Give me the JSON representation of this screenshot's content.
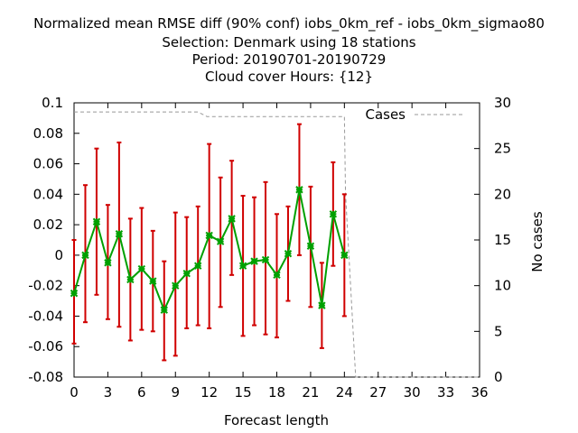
{
  "chart_data": {
    "type": "line",
    "title_lines": [
      "Normalized mean RMSE diff (90% conf) iobs_0km_ref - iobs_0km_sigmao80",
      "Selection: Denmark using    18 stations",
      "Period: 20190701-20190729",
      "Cloud cover   Hours: {12}"
    ],
    "xlabel": "Forecast length",
    "ylabel_right": "No cases",
    "xlim": [
      0,
      36
    ],
    "ylim": [
      -0.08,
      0.1
    ],
    "y2lim": [
      0,
      30
    ],
    "x_ticks": [
      "0",
      "3",
      "6",
      "9",
      "12",
      "15",
      "18",
      "21",
      "24",
      "27",
      "30",
      "33",
      "36"
    ],
    "y_ticks": [
      "0.1",
      "0.08",
      "0.06",
      "0.04",
      "0.02",
      "0",
      "-0.02",
      "-0.04",
      "-0.06",
      "-0.08"
    ],
    "y2_ticks": [
      "30",
      "25",
      "20",
      "15",
      "10",
      "5",
      "0"
    ],
    "x_tick_values": [
      0,
      3,
      6,
      9,
      12,
      15,
      18,
      21,
      24,
      27,
      30,
      33,
      36
    ],
    "y_tick_values": [
      0.1,
      0.08,
      0.06,
      0.04,
      0.02,
      0,
      -0.02,
      -0.04,
      -0.06,
      -0.08
    ],
    "y2_tick_values": [
      30,
      25,
      20,
      15,
      10,
      5,
      0
    ],
    "colors": {
      "mean_line": "#00a000",
      "error_bars": "#d00000",
      "cases": "#999999"
    },
    "series": [
      {
        "role": "mean",
        "x": [
          0,
          1,
          2,
          3,
          4,
          5,
          6,
          7,
          8,
          9,
          10,
          11,
          12,
          13,
          14,
          15,
          16,
          17,
          18,
          19,
          20,
          21,
          22,
          23,
          24
        ],
        "values": [
          -0.025,
          0.0,
          0.022,
          -0.005,
          0.014,
          -0.016,
          -0.009,
          -0.017,
          -0.036,
          -0.02,
          -0.012,
          -0.007,
          0.013,
          0.009,
          0.024,
          -0.007,
          -0.004,
          -0.003,
          -0.013,
          0.001,
          0.043,
          0.006,
          -0.033,
          0.027,
          0.0
        ],
        "lower": [
          -0.058,
          -0.044,
          -0.026,
          -0.042,
          -0.047,
          -0.056,
          -0.049,
          -0.05,
          -0.069,
          -0.066,
          -0.048,
          -0.046,
          -0.048,
          -0.034,
          -0.013,
          -0.053,
          -0.046,
          -0.052,
          -0.054,
          -0.03,
          0.0,
          -0.034,
          -0.061,
          -0.007,
          -0.04
        ],
        "upper": [
          0.01,
          0.046,
          0.07,
          0.033,
          0.074,
          0.024,
          0.031,
          0.016,
          -0.004,
          0.028,
          0.025,
          0.032,
          0.073,
          0.051,
          0.062,
          0.039,
          0.038,
          0.048,
          0.027,
          0.032,
          0.086,
          0.045,
          -0.005,
          0.061,
          0.04
        ]
      },
      {
        "name": "Cases",
        "role": "cases",
        "axis": "right",
        "x": [
          0,
          11,
          11.8,
          24,
          24.1,
          25,
          25.5,
          36
        ],
        "values": [
          29,
          29,
          28.5,
          28.5,
          20,
          0,
          0,
          0
        ]
      }
    ],
    "legend": {
      "entries": [
        "Cases"
      ],
      "position": "top-right"
    },
    "grid": false
  }
}
